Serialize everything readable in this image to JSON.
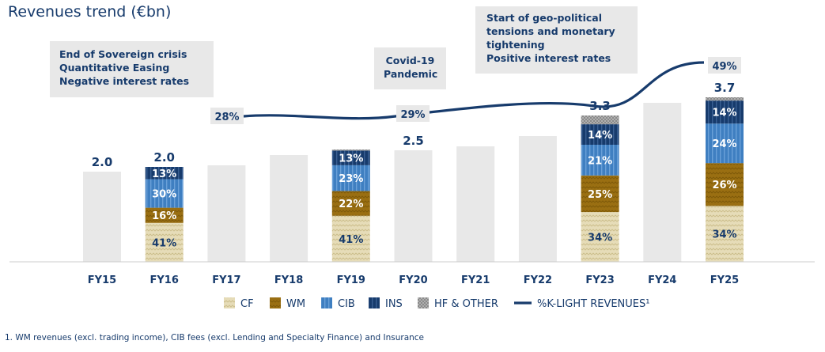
{
  "chart_data": {
    "type": "bar",
    "title": "Revenues trend (€bn)",
    "categories": [
      "FY15",
      "FY16",
      "FY17",
      "FY18",
      "FY19",
      "FY20",
      "FY21",
      "FY22",
      "FY23",
      "FY24",
      "FY25"
    ],
    "totals": [
      2.0,
      2.0,
      null,
      null,
      null,
      2.5,
      null,
      null,
      3.3,
      null,
      3.7
    ],
    "total_labels": [
      "2.0",
      "2.0",
      "",
      "",
      "",
      "2.5",
      "",
      "",
      "3.3",
      "",
      "3.7"
    ],
    "breakdown_years": [
      "FY16",
      "FY19",
      "FY23",
      "FY25"
    ],
    "series": [
      {
        "name": "CF",
        "color": "#e6dcb8",
        "pattern": "zigzag",
        "values": {
          "FY16": 41,
          "FY19": 41,
          "FY23": 34,
          "FY25": 34
        }
      },
      {
        "name": "WM",
        "color": "#9a6f12",
        "pattern": "zigzag",
        "values": {
          "FY16": 16,
          "FY19": 22,
          "FY23": 25,
          "FY25": 26
        }
      },
      {
        "name": "CIB",
        "color": "#3f7fc1",
        "pattern": "stripes",
        "values": {
          "FY16": 30,
          "FY19": 23,
          "FY23": 21,
          "FY25": 24
        }
      },
      {
        "name": "INS",
        "color": "#173b6c",
        "pattern": "stripes",
        "values": {
          "FY16": 13,
          "FY19": 13,
          "FY23": 14,
          "FY25": 14
        }
      },
      {
        "name": "HF & OTHER",
        "color": "#8a8a8a",
        "pattern": "dots",
        "values": {
          "FY16": 0,
          "FY19": 1,
          "FY23": 6,
          "FY25": 2
        }
      }
    ],
    "line": {
      "name": "%K-LIGHT REVENUES¹",
      "color": "#173b6c",
      "labels": [
        {
          "x": "FY17",
          "label": "28%"
        },
        {
          "x": "FY20",
          "label": "29%"
        },
        {
          "x": "FY25",
          "label": "49%"
        }
      ]
    },
    "legend_placement": "bottom"
  },
  "annotations": [
    {
      "lines": [
        "End of Sovereign crisis",
        "Quantitative Easing",
        "Negative interest rates"
      ]
    },
    {
      "lines": [
        "Covid-19",
        "Pandemic"
      ]
    },
    {
      "lines": [
        "Start of geo-political",
        "tensions and monetary",
        "tightening",
        "Positive interest rates"
      ]
    }
  ],
  "footnote": "1. WM revenues (excl. trading income), CIB fees (excl. Lending and Specialty Finance) and Insurance",
  "colors": {
    "accent": "#173b6c",
    "bar_gray": "#e8e8e8",
    "label_box": "#e8e8e8"
  }
}
